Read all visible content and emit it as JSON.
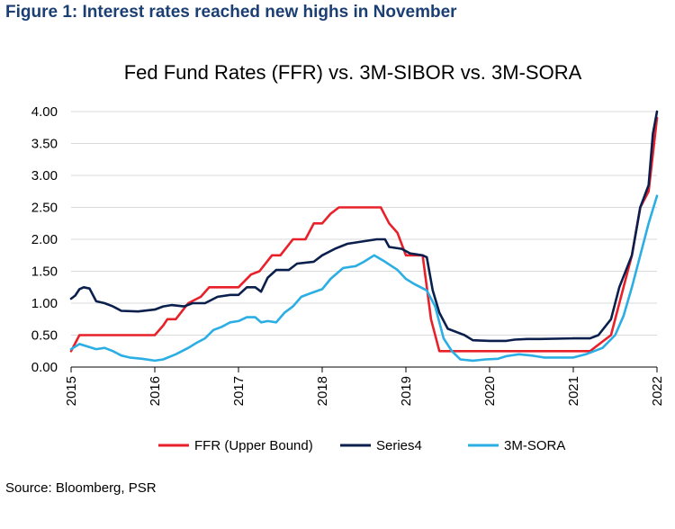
{
  "figure_heading": "Figure 1: Interest rates reached new highs in November",
  "source_note": "Source: Bloomberg, PSR",
  "colors": {
    "heading": "#1b3f73",
    "ffr": "#e8202a",
    "series4": "#0b1f4d",
    "sora": "#2aaee4",
    "grid": "#d9d9d9",
    "axis": "#000000"
  },
  "chart_data": {
    "type": "line",
    "title": "Fed Fund Rates (FFR) vs. 3M-SIBOR vs. 3M-SORA",
    "xlabel": "",
    "ylabel": "",
    "xlim": [
      2015,
      2022
    ],
    "ylim": [
      0,
      4
    ],
    "y_ticks": [
      "0.00",
      "0.50",
      "1.00",
      "1.50",
      "2.00",
      "2.50",
      "3.00",
      "3.50",
      "4.00"
    ],
    "x_ticks": [
      "2015",
      "2016",
      "2017",
      "2018",
      "2019",
      "2020",
      "2021",
      "2022"
    ],
    "grid": "horizontal",
    "legend_position": "bottom",
    "series": [
      {
        "name": "FFR (Upper Bound)",
        "color": "#e8202a",
        "points": [
          [
            2015.0,
            0.25
          ],
          [
            2015.1,
            0.5
          ],
          [
            2015.5,
            0.5
          ],
          [
            2015.9,
            0.5
          ],
          [
            2016.0,
            0.5
          ],
          [
            2016.1,
            0.65
          ],
          [
            2016.15,
            0.75
          ],
          [
            2016.25,
            0.75
          ],
          [
            2016.4,
            1.0
          ],
          [
            2016.55,
            1.1
          ],
          [
            2016.65,
            1.25
          ],
          [
            2016.8,
            1.25
          ],
          [
            2017.0,
            1.25
          ],
          [
            2017.15,
            1.45
          ],
          [
            2017.25,
            1.5
          ],
          [
            2017.4,
            1.75
          ],
          [
            2017.5,
            1.75
          ],
          [
            2017.65,
            2.0
          ],
          [
            2017.8,
            2.0
          ],
          [
            2017.9,
            2.25
          ],
          [
            2018.0,
            2.25
          ],
          [
            2018.1,
            2.4
          ],
          [
            2018.2,
            2.5
          ],
          [
            2018.5,
            2.5
          ],
          [
            2018.7,
            2.5
          ],
          [
            2018.8,
            2.25
          ],
          [
            2018.9,
            2.1
          ],
          [
            2019.0,
            1.75
          ],
          [
            2019.1,
            1.75
          ],
          [
            2019.2,
            1.75
          ],
          [
            2019.3,
            0.75
          ],
          [
            2019.4,
            0.25
          ],
          [
            2019.7,
            0.25
          ],
          [
            2020.0,
            0.25
          ],
          [
            2020.5,
            0.25
          ],
          [
            2021.0,
            0.25
          ],
          [
            2021.2,
            0.25
          ],
          [
            2021.35,
            0.4
          ],
          [
            2021.45,
            0.5
          ],
          [
            2021.6,
            1.25
          ],
          [
            2021.7,
            1.75
          ],
          [
            2021.8,
            2.5
          ],
          [
            2021.9,
            2.75
          ],
          [
            2022.0,
            3.9
          ]
        ]
      },
      {
        "name": "Series4",
        "color": "#0b1f4d",
        "points": [
          [
            2015.0,
            1.07
          ],
          [
            2015.05,
            1.12
          ],
          [
            2015.1,
            1.22
          ],
          [
            2015.15,
            1.25
          ],
          [
            2015.22,
            1.23
          ],
          [
            2015.3,
            1.03
          ],
          [
            2015.4,
            1.0
          ],
          [
            2015.5,
            0.95
          ],
          [
            2015.6,
            0.88
          ],
          [
            2015.8,
            0.87
          ],
          [
            2016.0,
            0.9
          ],
          [
            2016.1,
            0.95
          ],
          [
            2016.2,
            0.97
          ],
          [
            2016.35,
            0.95
          ],
          [
            2016.45,
            1.0
          ],
          [
            2016.6,
            1.0
          ],
          [
            2016.75,
            1.1
          ],
          [
            2016.9,
            1.13
          ],
          [
            2017.0,
            1.13
          ],
          [
            2017.1,
            1.25
          ],
          [
            2017.2,
            1.25
          ],
          [
            2017.27,
            1.18
          ],
          [
            2017.35,
            1.4
          ],
          [
            2017.45,
            1.52
          ],
          [
            2017.6,
            1.52
          ],
          [
            2017.7,
            1.62
          ],
          [
            2017.9,
            1.65
          ],
          [
            2018.0,
            1.75
          ],
          [
            2018.15,
            1.85
          ],
          [
            2018.3,
            1.93
          ],
          [
            2018.5,
            1.97
          ],
          [
            2018.65,
            2.0
          ],
          [
            2018.75,
            2.0
          ],
          [
            2018.8,
            1.88
          ],
          [
            2018.95,
            1.85
          ],
          [
            2019.05,
            1.78
          ],
          [
            2019.2,
            1.75
          ],
          [
            2019.25,
            1.72
          ],
          [
            2019.32,
            1.2
          ],
          [
            2019.4,
            0.85
          ],
          [
            2019.5,
            0.6
          ],
          [
            2019.7,
            0.5
          ],
          [
            2019.8,
            0.42
          ],
          [
            2020.0,
            0.41
          ],
          [
            2020.2,
            0.41
          ],
          [
            2020.3,
            0.43
          ],
          [
            2020.45,
            0.44
          ],
          [
            2020.6,
            0.44
          ],
          [
            2021.0,
            0.45
          ],
          [
            2021.2,
            0.45
          ],
          [
            2021.3,
            0.5
          ],
          [
            2021.45,
            0.75
          ],
          [
            2021.55,
            1.25
          ],
          [
            2021.7,
            1.75
          ],
          [
            2021.8,
            2.5
          ],
          [
            2021.9,
            2.85
          ],
          [
            2021.95,
            3.65
          ],
          [
            2022.0,
            4.0
          ]
        ]
      },
      {
        "name": "3M-SORA",
        "color": "#2aaee4",
        "points": [
          [
            2015.0,
            0.28
          ],
          [
            2015.05,
            0.32
          ],
          [
            2015.1,
            0.36
          ],
          [
            2015.2,
            0.32
          ],
          [
            2015.3,
            0.28
          ],
          [
            2015.4,
            0.3
          ],
          [
            2015.5,
            0.25
          ],
          [
            2015.6,
            0.18
          ],
          [
            2015.7,
            0.15
          ],
          [
            2015.85,
            0.13
          ],
          [
            2016.0,
            0.1
          ],
          [
            2016.1,
            0.12
          ],
          [
            2016.25,
            0.2
          ],
          [
            2016.4,
            0.3
          ],
          [
            2016.5,
            0.38
          ],
          [
            2016.6,
            0.45
          ],
          [
            2016.7,
            0.58
          ],
          [
            2016.8,
            0.63
          ],
          [
            2016.9,
            0.7
          ],
          [
            2017.0,
            0.72
          ],
          [
            2017.1,
            0.78
          ],
          [
            2017.2,
            0.78
          ],
          [
            2017.27,
            0.7
          ],
          [
            2017.35,
            0.72
          ],
          [
            2017.45,
            0.7
          ],
          [
            2017.55,
            0.85
          ],
          [
            2017.65,
            0.95
          ],
          [
            2017.75,
            1.1
          ],
          [
            2017.85,
            1.15
          ],
          [
            2018.0,
            1.22
          ],
          [
            2018.1,
            1.38
          ],
          [
            2018.25,
            1.55
          ],
          [
            2018.4,
            1.58
          ],
          [
            2018.5,
            1.65
          ],
          [
            2018.62,
            1.75
          ],
          [
            2018.75,
            1.65
          ],
          [
            2018.9,
            1.52
          ],
          [
            2019.0,
            1.38
          ],
          [
            2019.1,
            1.3
          ],
          [
            2019.25,
            1.2
          ],
          [
            2019.35,
            0.95
          ],
          [
            2019.45,
            0.45
          ],
          [
            2019.55,
            0.25
          ],
          [
            2019.65,
            0.12
          ],
          [
            2019.8,
            0.1
          ],
          [
            2019.95,
            0.12
          ],
          [
            2020.1,
            0.13
          ],
          [
            2020.2,
            0.17
          ],
          [
            2020.35,
            0.2
          ],
          [
            2020.5,
            0.18
          ],
          [
            2020.65,
            0.15
          ],
          [
            2021.0,
            0.15
          ],
          [
            2021.15,
            0.2
          ],
          [
            2021.35,
            0.3
          ],
          [
            2021.5,
            0.5
          ],
          [
            2021.6,
            0.8
          ],
          [
            2021.7,
            1.25
          ],
          [
            2021.8,
            1.75
          ],
          [
            2021.9,
            2.25
          ],
          [
            2022.0,
            2.68
          ]
        ]
      }
    ]
  }
}
